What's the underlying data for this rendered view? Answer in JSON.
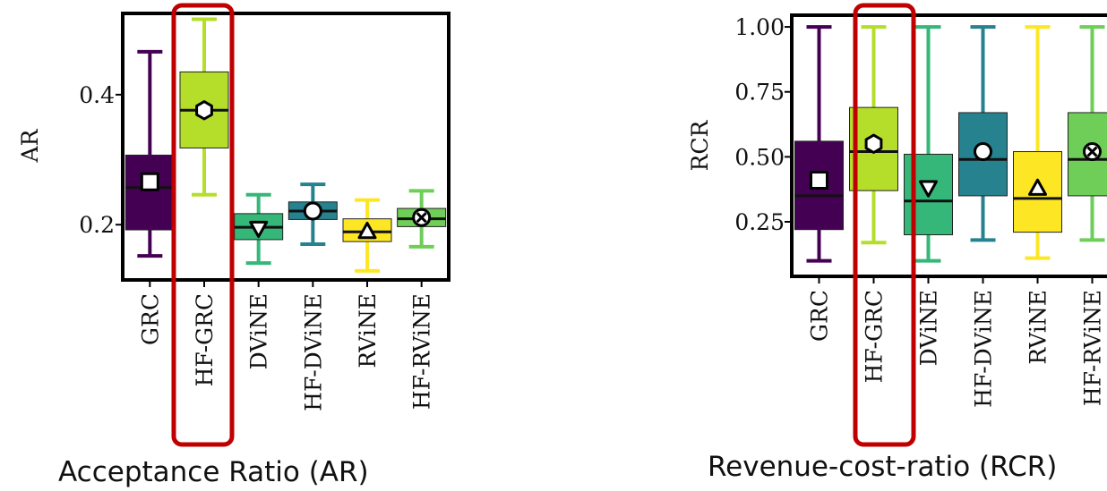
{
  "chart_data": [
    {
      "type": "box",
      "title": "Acceptance Ratio (AR)",
      "ylabel": "AR",
      "ylim": [
        0.115,
        0.525
      ],
      "yticks": [
        0.2,
        0.4
      ],
      "ytick_labels": [
        "0.2",
        "0.4"
      ],
      "grid": false,
      "highlight": "HF-GRC",
      "categories": [
        "GRC",
        "HF-GRC",
        "DViNE",
        "HF-DViNE",
        "RViNE",
        "HF-RViNE"
      ],
      "boxes": [
        {
          "name": "GRC",
          "whisker_low": 0.152,
          "q1": 0.192,
          "median": 0.257,
          "q3": 0.307,
          "whisker_high": 0.466,
          "mean": 0.266,
          "marker": "square",
          "color": "#440154"
        },
        {
          "name": "HF-GRC",
          "whisker_low": 0.246,
          "q1": 0.318,
          "median": 0.376,
          "q3": 0.435,
          "whisker_high": 0.516,
          "mean": 0.376,
          "marker": "hexagon",
          "color": "#b5de2b"
        },
        {
          "name": "DViNE",
          "whisker_low": 0.141,
          "q1": 0.177,
          "median": 0.196,
          "q3": 0.217,
          "whisker_high": 0.246,
          "mean": 0.194,
          "marker": "triangle-down",
          "color": "#35b779"
        },
        {
          "name": "HF-DViNE",
          "whisker_low": 0.17,
          "q1": 0.208,
          "median": 0.221,
          "q3": 0.235,
          "whisker_high": 0.262,
          "mean": 0.221,
          "marker": "circle",
          "color": "#26828e"
        },
        {
          "name": "RViNE",
          "whisker_low": 0.129,
          "q1": 0.174,
          "median": 0.189,
          "q3": 0.209,
          "whisker_high": 0.238,
          "mean": 0.19,
          "marker": "triangle-up",
          "color": "#fde725"
        },
        {
          "name": "HF-RViNE",
          "whisker_low": 0.166,
          "q1": 0.197,
          "median": 0.209,
          "q3": 0.225,
          "whisker_high": 0.252,
          "mean": 0.211,
          "marker": "x",
          "color": "#6ece58"
        }
      ]
    },
    {
      "type": "box",
      "title": "Revenue-cost-ratio (RCR)",
      "ylabel": "RCR",
      "ylim": [
        0.04,
        1.045
      ],
      "yticks": [
        0.25,
        0.5,
        0.75,
        1.0
      ],
      "ytick_labels": [
        "0.25",
        "0.50",
        "0.75",
        "1.00"
      ],
      "grid": false,
      "highlight": "HF-GRC",
      "categories": [
        "GRC",
        "HF-GRC",
        "DViNE",
        "HF-DViNE",
        "RViNE",
        "HF-RViNE"
      ],
      "boxes": [
        {
          "name": "GRC",
          "whisker_low": 0.1,
          "q1": 0.22,
          "median": 0.35,
          "q3": 0.56,
          "whisker_high": 1.0,
          "mean": 0.41,
          "marker": "square",
          "color": "#440154"
        },
        {
          "name": "HF-GRC",
          "whisker_low": 0.17,
          "q1": 0.37,
          "median": 0.52,
          "q3": 0.69,
          "whisker_high": 1.0,
          "mean": 0.55,
          "marker": "hexagon",
          "color": "#b5de2b"
        },
        {
          "name": "DViNE",
          "whisker_low": 0.1,
          "q1": 0.2,
          "median": 0.33,
          "q3": 0.51,
          "whisker_high": 1.0,
          "mean": 0.38,
          "marker": "triangle-down",
          "color": "#35b779"
        },
        {
          "name": "HF-DViNE",
          "whisker_low": 0.18,
          "q1": 0.35,
          "median": 0.49,
          "q3": 0.67,
          "whisker_high": 1.0,
          "mean": 0.52,
          "marker": "circle",
          "color": "#26828e"
        },
        {
          "name": "RViNE",
          "whisker_low": 0.11,
          "q1": 0.21,
          "median": 0.34,
          "q3": 0.52,
          "whisker_high": 1.0,
          "mean": 0.38,
          "marker": "triangle-up",
          "color": "#fde725"
        },
        {
          "name": "HF-RViNE",
          "whisker_low": 0.18,
          "q1": 0.35,
          "median": 0.49,
          "q3": 0.67,
          "whisker_high": 1.0,
          "mean": 0.52,
          "marker": "x",
          "color": "#6ece58"
        }
      ]
    }
  ],
  "colors": {
    "highlight": "#c00000",
    "axis": "#000000"
  }
}
